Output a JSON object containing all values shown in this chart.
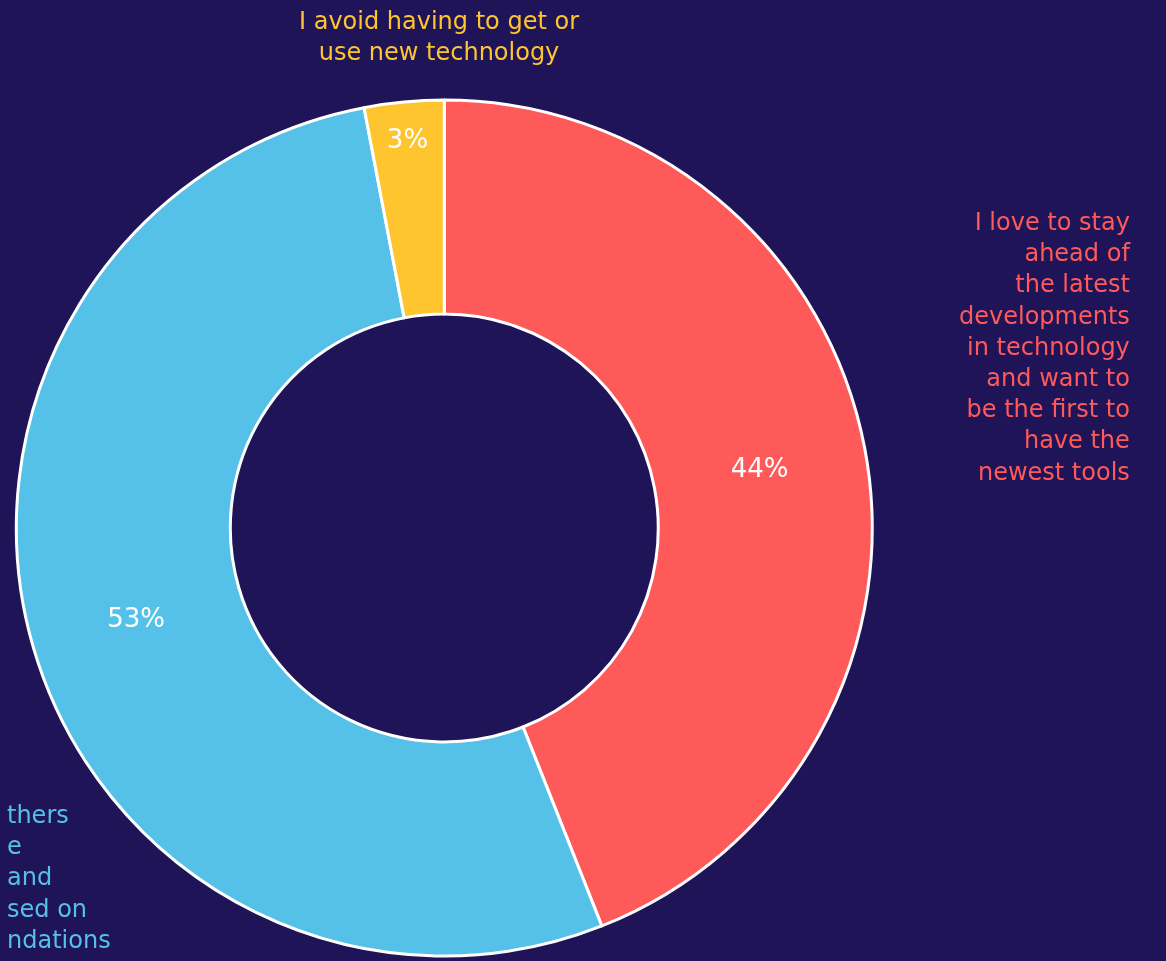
{
  "chart_data": {
    "type": "donut",
    "categories": [
      "I love to stay\nahead of\nthe latest\ndevelopments\nin technology\nand want to\nbe the first to\nhave the\nnewest tools",
      "thers\ne\nand\nsed on\nndations",
      "I avoid having to get or\nuse new technology"
    ],
    "values": [
      44,
      53,
      3
    ],
    "value_labels": [
      "44%",
      "53%",
      "3%"
    ],
    "colors": [
      "#ff5a5a",
      "#55c0e8",
      "#ffc52f"
    ],
    "legend": false
  }
}
